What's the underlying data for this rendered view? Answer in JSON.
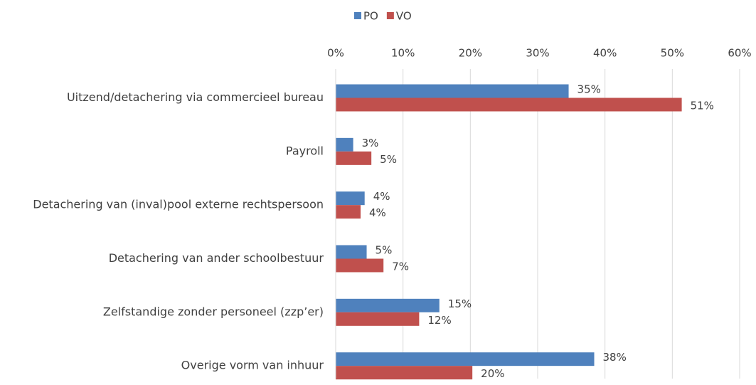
{
  "chart_data": {
    "type": "hbar",
    "categories": [
      "Uitzend/detachering via commercieel bureau",
      "Payroll",
      "Detachering van (inval)pool externe rechtspersoon",
      "Detachering van ander schoolbestuur",
      "Zelfstandige zonder personeel (zzp’er)",
      "Overige vorm van inhuur"
    ],
    "series": [
      {
        "name": "PO",
        "color": "#4f81bd",
        "values": [
          34.6,
          2.6,
          4.3,
          4.6,
          15.4,
          38.4
        ],
        "value_labels": [
          "35%",
          "3%",
          "4%",
          "5%",
          "15%",
          "38%"
        ]
      },
      {
        "name": "VO",
        "color": "#c0504d",
        "values": [
          51.4,
          5.3,
          3.7,
          7.1,
          12.4,
          20.3
        ],
        "value_labels": [
          "51%",
          "5%",
          "4%",
          "7%",
          "12%",
          "20%"
        ]
      }
    ],
    "xlim": [
      0,
      60
    ],
    "xticks": [
      {
        "value": 0,
        "label": "0%"
      },
      {
        "value": 10,
        "label": "10%"
      },
      {
        "value": 20,
        "label": "20%"
      },
      {
        "value": 30,
        "label": "30%"
      },
      {
        "value": 40,
        "label": "40%"
      },
      {
        "value": 50,
        "label": "50%"
      },
      {
        "value": 60,
        "label": "60%"
      }
    ],
    "grid": true,
    "legend": "top"
  }
}
